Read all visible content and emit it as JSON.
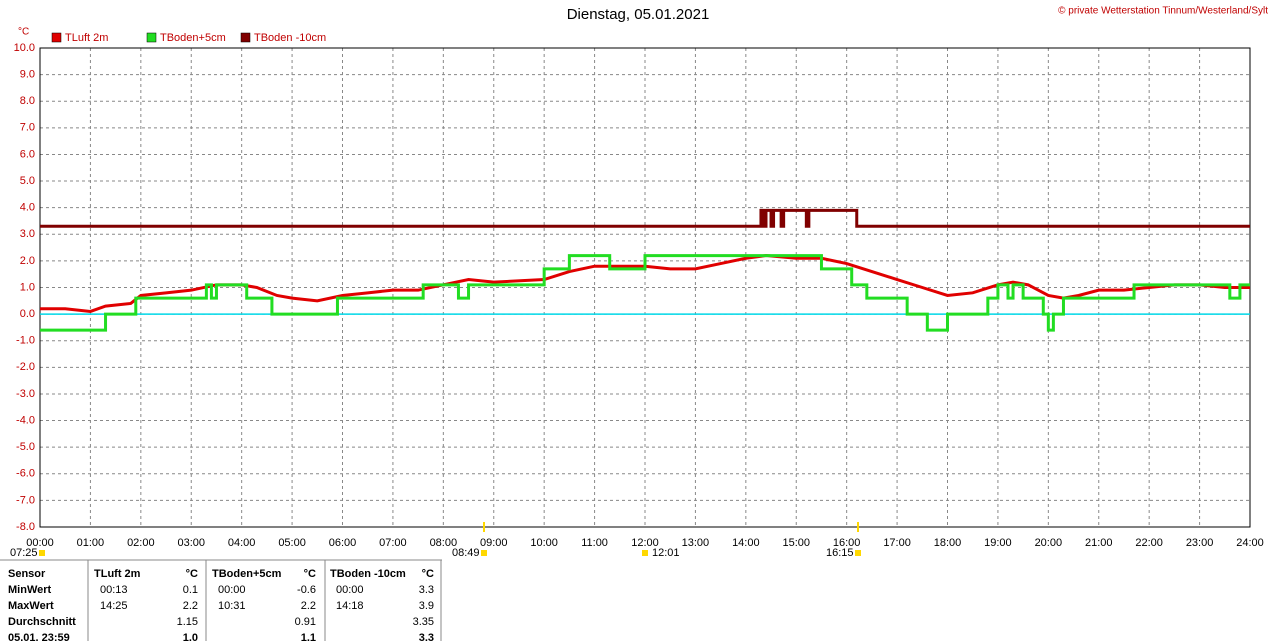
{
  "chart_data": {
    "type": "line",
    "title": "Dienstag, 05.01.2021",
    "copyright": "© private Wetterstation Tinnum/Westerland/Sylt",
    "y_unit": "°C",
    "xlim": [
      0,
      24
    ],
    "ylim": [
      -8,
      10
    ],
    "grid": true,
    "xticks": [
      {
        "value": 0,
        "label": "00:00"
      },
      {
        "value": 1,
        "label": "01:00"
      },
      {
        "value": 2,
        "label": "02:00"
      },
      {
        "value": 3,
        "label": "03:00"
      },
      {
        "value": 4,
        "label": "04:00"
      },
      {
        "value": 5,
        "label": "05:00"
      },
      {
        "value": 6,
        "label": "06:00"
      },
      {
        "value": 7,
        "label": "07:00"
      },
      {
        "value": 8,
        "label": "08:00"
      },
      {
        "value": 9,
        "label": "09:00"
      },
      {
        "value": 10,
        "label": "10:00"
      },
      {
        "value": 11,
        "label": "11:00"
      },
      {
        "value": 12,
        "label": "12:00"
      },
      {
        "value": 13,
        "label": "13:00"
      },
      {
        "value": 14,
        "label": "14:00"
      },
      {
        "value": 15,
        "label": "15:00"
      },
      {
        "value": 16,
        "label": "16:00"
      },
      {
        "value": 17,
        "label": "17:00"
      },
      {
        "value": 18,
        "label": "18:00"
      },
      {
        "value": 19,
        "label": "19:00"
      },
      {
        "value": 20,
        "label": "20:00"
      },
      {
        "value": 21,
        "label": "21:00"
      },
      {
        "value": 22,
        "label": "22:00"
      },
      {
        "value": 23,
        "label": "23:00"
      },
      {
        "value": 24,
        "label": "24:00"
      }
    ],
    "yticks": [
      {
        "value": 10,
        "label": "10.0"
      },
      {
        "value": 9,
        "label": "9.0"
      },
      {
        "value": 8,
        "label": "8.0"
      },
      {
        "value": 7,
        "label": "7.0"
      },
      {
        "value": 6,
        "label": "6.0"
      },
      {
        "value": 5,
        "label": "5.0"
      },
      {
        "value": 4,
        "label": "4.0"
      },
      {
        "value": 3,
        "label": "3.0"
      },
      {
        "value": 2,
        "label": "2.0"
      },
      {
        "value": 1,
        "label": "1.0"
      },
      {
        "value": 0,
        "label": "0.0"
      },
      {
        "value": -1,
        "label": "-1.0"
      },
      {
        "value": -2,
        "label": "-2.0"
      },
      {
        "value": -3,
        "label": "-3.0"
      },
      {
        "value": -4,
        "label": "-4.0"
      },
      {
        "value": -5,
        "label": "-5.0"
      },
      {
        "value": -6,
        "label": "-6.0"
      },
      {
        "value": -7,
        "label": "-7.0"
      },
      {
        "value": -8,
        "label": "-8.0"
      }
    ],
    "annotations": [
      "07:25",
      "08:49",
      "12:01",
      "16:15"
    ],
    "series": [
      {
        "name": "TLuft 2m",
        "color": "#e00000",
        "x": [
          0,
          0.5,
          1,
          1.3,
          1.8,
          2,
          2.5,
          3,
          3.5,
          4,
          4.3,
          4.7,
          5,
          5.5,
          6,
          6.5,
          7,
          7.5,
          8,
          8.5,
          9,
          10,
          10.5,
          11,
          12,
          12.5,
          13,
          13.5,
          14,
          14.4,
          15,
          15.5,
          16,
          16.5,
          17,
          17.5,
          18,
          18.5,
          19,
          19.3,
          19.6,
          20,
          20.3,
          20.6,
          21,
          21.5,
          22,
          22.5,
          23,
          23.5,
          24
        ],
        "values": [
          0.2,
          0.2,
          0.1,
          0.3,
          0.4,
          0.7,
          0.8,
          0.9,
          1.1,
          1.1,
          1.0,
          0.7,
          0.6,
          0.5,
          0.7,
          0.8,
          0.9,
          0.9,
          1.1,
          1.3,
          1.2,
          1.3,
          1.6,
          1.8,
          1.8,
          1.7,
          1.7,
          1.9,
          2.1,
          2.2,
          2.1,
          2.1,
          1.9,
          1.6,
          1.3,
          1.0,
          0.7,
          0.8,
          1.1,
          1.2,
          1.1,
          0.7,
          0.6,
          0.7,
          0.9,
          0.9,
          1.0,
          1.1,
          1.1,
          1.0,
          1.0
        ]
      },
      {
        "name": "TBoden+5cm",
        "color": "#22dd22",
        "x": [
          0,
          1.3,
          1.3,
          1.9,
          1.9,
          3.3,
          3.3,
          3.4,
          3.4,
          3.5,
          3.5,
          4.1,
          4.1,
          4.6,
          4.6,
          5.9,
          5.9,
          7.6,
          7.6,
          8.3,
          8.3,
          8.5,
          8.5,
          10,
          10,
          10.5,
          10.5,
          11.3,
          11.3,
          12,
          12,
          15.5,
          15.5,
          16.1,
          16.1,
          16.4,
          16.4,
          17.2,
          17.2,
          17.6,
          17.6,
          18,
          18,
          18.8,
          18.8,
          19,
          19,
          19.2,
          19.2,
          19.3,
          19.3,
          19.5,
          19.5,
          19.9,
          19.9,
          20,
          20,
          20.1,
          20.1,
          20.3,
          20.3,
          21.7,
          21.7,
          23.6,
          23.6,
          23.8,
          23.8,
          24
        ],
        "values": [
          -0.6,
          -0.6,
          0,
          0,
          0.6,
          0.6,
          1.1,
          1.1,
          0.6,
          0.6,
          1.1,
          1.1,
          0.6,
          0.6,
          0,
          0,
          0.6,
          0.6,
          1.1,
          1.1,
          0.6,
          0.6,
          1.1,
          1.1,
          1.7,
          1.7,
          2.2,
          2.2,
          1.7,
          1.7,
          2.2,
          2.2,
          1.7,
          1.7,
          1.1,
          1.1,
          0.6,
          0.6,
          0,
          0,
          -0.6,
          -0.6,
          0,
          0,
          0.6,
          0.6,
          1.1,
          1.1,
          0.6,
          0.6,
          1.1,
          1.1,
          0.6,
          0.6,
          0,
          0,
          -0.6,
          -0.6,
          0,
          0,
          0.6,
          0.6,
          1.1,
          1.1,
          0.6,
          0.6,
          1.1,
          1.1
        ]
      },
      {
        "name": "TBoden -10cm",
        "color": "#800000",
        "x": [
          0,
          14.3,
          14.3,
          14.35,
          14.35,
          14.4,
          14.4,
          14.5,
          14.5,
          14.55,
          14.55,
          14.7,
          14.7,
          14.75,
          14.75,
          15.2,
          15.2,
          15.25,
          15.25,
          16.2,
          16.2,
          24
        ],
        "values": [
          3.3,
          3.3,
          3.9,
          3.9,
          3.3,
          3.3,
          3.9,
          3.9,
          3.3,
          3.3,
          3.9,
          3.9,
          3.3,
          3.3,
          3.9,
          3.9,
          3.3,
          3.3,
          3.9,
          3.9,
          3.3,
          3.3
        ]
      }
    ]
  },
  "table": {
    "header": [
      "Sensor",
      "TLuft 2m",
      "°C",
      "TBoden+5cm",
      "°C",
      "TBoden -10cm",
      "°C"
    ],
    "rows": [
      [
        "MinWert",
        "00:13",
        "0.1",
        "00:00",
        "-0.6",
        "00:00",
        "3.3"
      ],
      [
        "MaxWert",
        "14:25",
        "2.2",
        "10:31",
        "2.2",
        "14:18",
        "3.9"
      ],
      [
        "Durchschnitt",
        null,
        "1.15",
        null,
        "0.91",
        null,
        "3.35"
      ],
      [
        "05.01. 23:59",
        null,
        "1.0",
        null,
        "1.1",
        null,
        "3.3"
      ]
    ]
  }
}
